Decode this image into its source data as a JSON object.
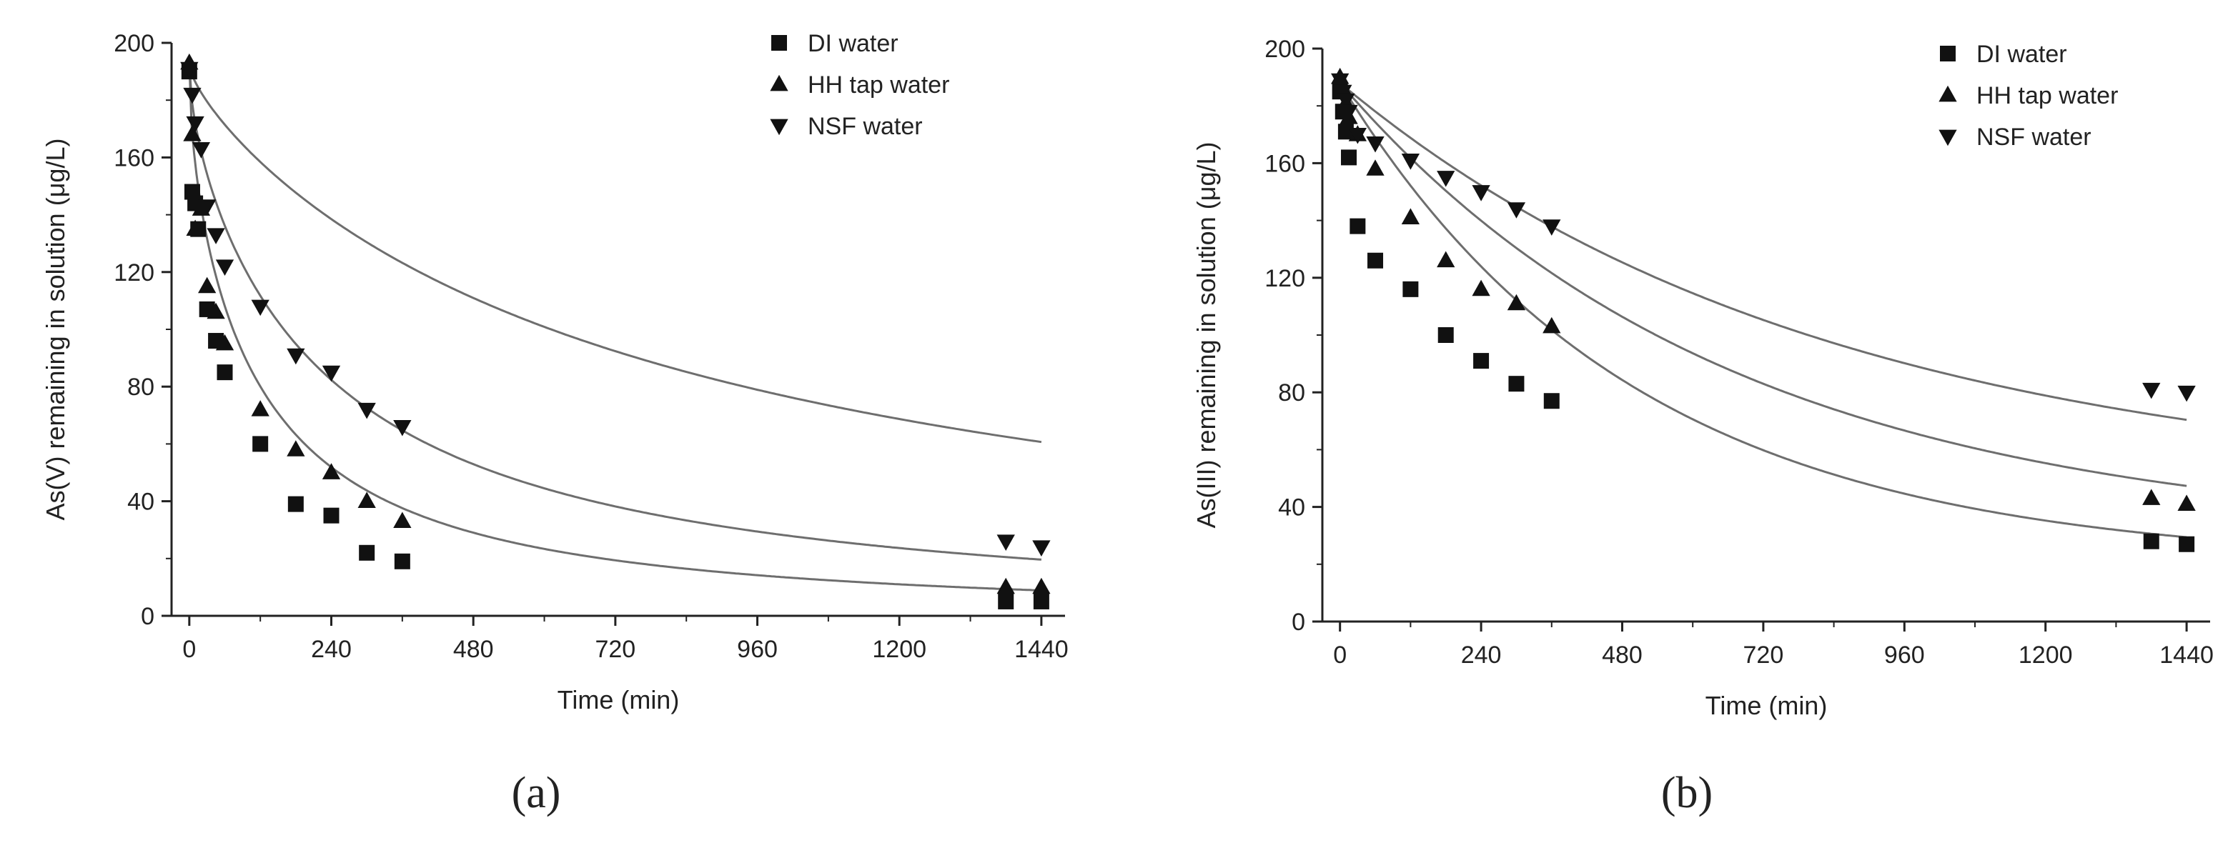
{
  "figure": {
    "panel_labels": [
      "(a)",
      "(b)"
    ]
  },
  "style": {
    "marker_color": "#111111",
    "curve_color": "#6e6e6e",
    "axis_color": "#222222",
    "background": "#ffffff"
  },
  "chart_data": [
    {
      "type": "scatter",
      "panel": "a",
      "panel_label": "(a)",
      "title": "",
      "xlabel": "Time (min)",
      "ylabel": "As(V) remaining in solution (μg/L)",
      "xlim": [
        -30,
        1480
      ],
      "ylim": [
        0,
        200
      ],
      "xticks": [
        0,
        240,
        480,
        720,
        960,
        1200,
        1440
      ],
      "yticks": [
        0,
        40,
        80,
        120,
        160,
        200
      ],
      "grid": false,
      "legend_position": "top-right",
      "series": [
        {
          "name": "DI water",
          "marker": "square",
          "x": [
            0,
            5,
            10,
            15,
            30,
            45,
            60,
            120,
            180,
            240,
            300,
            360,
            1380,
            1440
          ],
          "y": [
            190,
            148,
            144,
            135,
            107,
            96,
            85,
            60,
            39,
            35,
            22,
            19,
            5,
            5
          ],
          "fit": {
            "model": "pseudo-second-order",
            "c0": 193,
            "a": 0.055,
            "b": 0.42
          }
        },
        {
          "name": "HH tap water",
          "marker": "triangle-up",
          "x": [
            0,
            5,
            10,
            20,
            30,
            45,
            60,
            120,
            180,
            240,
            300,
            360,
            1380,
            1440
          ],
          "y": [
            193,
            168,
            135,
            142,
            115,
            106,
            95,
            72,
            58,
            50,
            40,
            33,
            10,
            10
          ],
          "fit": {
            "model": "pseudo-second-order",
            "c0": 193,
            "a": 0.03,
            "b": 0.25
          }
        },
        {
          "name": "NSF water",
          "marker": "triangle-down",
          "x": [
            0,
            5,
            10,
            20,
            30,
            45,
            60,
            120,
            180,
            240,
            300,
            360,
            1380,
            1440
          ],
          "y": [
            191,
            182,
            172,
            163,
            143,
            133,
            122,
            108,
            91,
            85,
            72,
            66,
            26,
            24
          ],
          "fit": {
            "model": "pseudo-second-order",
            "c0": 193,
            "a": 0.008,
            "b": 0.1
          }
        }
      ]
    },
    {
      "type": "scatter",
      "panel": "b",
      "panel_label": "(b)",
      "title": "",
      "xlabel": "Time (min)",
      "ylabel": "As(III) remaining in solution (μg/L)",
      "xlim": [
        -30,
        1480
      ],
      "ylim": [
        0,
        200
      ],
      "xticks": [
        0,
        240,
        480,
        720,
        960,
        1200,
        1440
      ],
      "yticks": [
        0,
        40,
        80,
        120,
        160,
        200
      ],
      "grid": false,
      "legend_position": "top-right",
      "series": [
        {
          "name": "DI water",
          "marker": "square",
          "x": [
            0,
            5,
            10,
            15,
            30,
            60,
            120,
            180,
            240,
            300,
            360,
            1380,
            1440
          ],
          "y": [
            185,
            178,
            171,
            162,
            138,
            126,
            116,
            100,
            91,
            83,
            77,
            28,
            27
          ],
          "fit": {
            "model": "exponential",
            "c_inf": 20,
            "c0": 188,
            "k": 0.002
          }
        },
        {
          "name": "HH tap water",
          "marker": "triangle-up",
          "x": [
            0,
            5,
            10,
            15,
            30,
            60,
            120,
            180,
            240,
            300,
            360,
            1380,
            1440
          ],
          "y": [
            190,
            186,
            181,
            176,
            170,
            158,
            141,
            126,
            116,
            111,
            103,
            43,
            41
          ],
          "fit": {
            "model": "exponential",
            "c_inf": 29,
            "c0": 188,
            "k": 0.0015
          }
        },
        {
          "name": "NSF water",
          "marker": "triangle-down",
          "x": [
            0,
            5,
            10,
            15,
            30,
            60,
            120,
            180,
            240,
            300,
            360,
            1380,
            1440
          ],
          "y": [
            189,
            185,
            182,
            178,
            170,
            167,
            161,
            155,
            150,
            144,
            138,
            81,
            80
          ],
          "fit": {
            "model": "exponential",
            "c_inf": 45,
            "c0": 188,
            "k": 0.0012
          }
        }
      ]
    }
  ]
}
